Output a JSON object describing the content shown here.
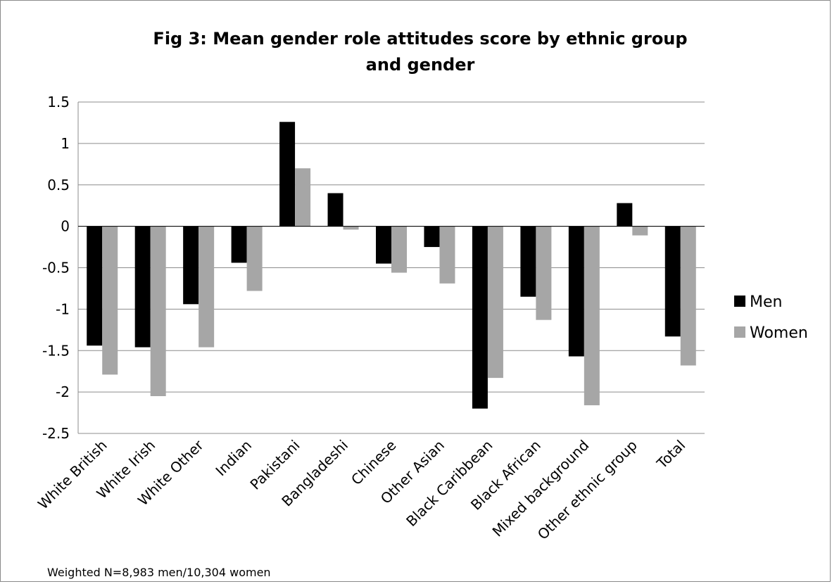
{
  "chart_data": {
    "type": "bar",
    "title": "Fig 3:  Mean gender role attitudes score by ethnic group and gender",
    "title_lines": [
      "Fig 3:  Mean gender role attitudes score by ethnic group",
      "and gender"
    ],
    "categories": [
      "White British",
      "White Irish",
      "White Other",
      "Indian",
      "Pakistani",
      "Bangladeshi",
      "Chinese",
      "Other Asian",
      "Black Caribbean",
      "Black African",
      "Mixed background",
      "Other ethnic group",
      "Total"
    ],
    "series": [
      {
        "name": "Men",
        "color": "#000000",
        "values": [
          -1.44,
          -1.46,
          -0.94,
          -0.44,
          1.26,
          0.4,
          -0.45,
          -0.25,
          -2.2,
          -0.85,
          -1.57,
          0.28,
          -1.33
        ]
      },
      {
        "name": "Women",
        "color": "#a6a6a6",
        "values": [
          -1.79,
          -2.05,
          -1.46,
          -0.78,
          0.7,
          -0.04,
          -0.56,
          -0.69,
          -1.83,
          -1.13,
          -2.16,
          -0.11,
          -1.68
        ]
      }
    ],
    "ylim": [
      -2.5,
      1.5
    ],
    "yticks": [
      1.5,
      1,
      0.5,
      0,
      -0.5,
      -1,
      -1.5,
      -2,
      -2.5
    ],
    "ytick_labels": [
      "1.5",
      "1",
      "0.5",
      "0",
      "-0.5",
      "-1",
      "-1.5",
      "-2",
      "-2.5"
    ],
    "grid": true,
    "legend_position": "right",
    "note": "Weighted N=8,983 men/10,304 women"
  }
}
